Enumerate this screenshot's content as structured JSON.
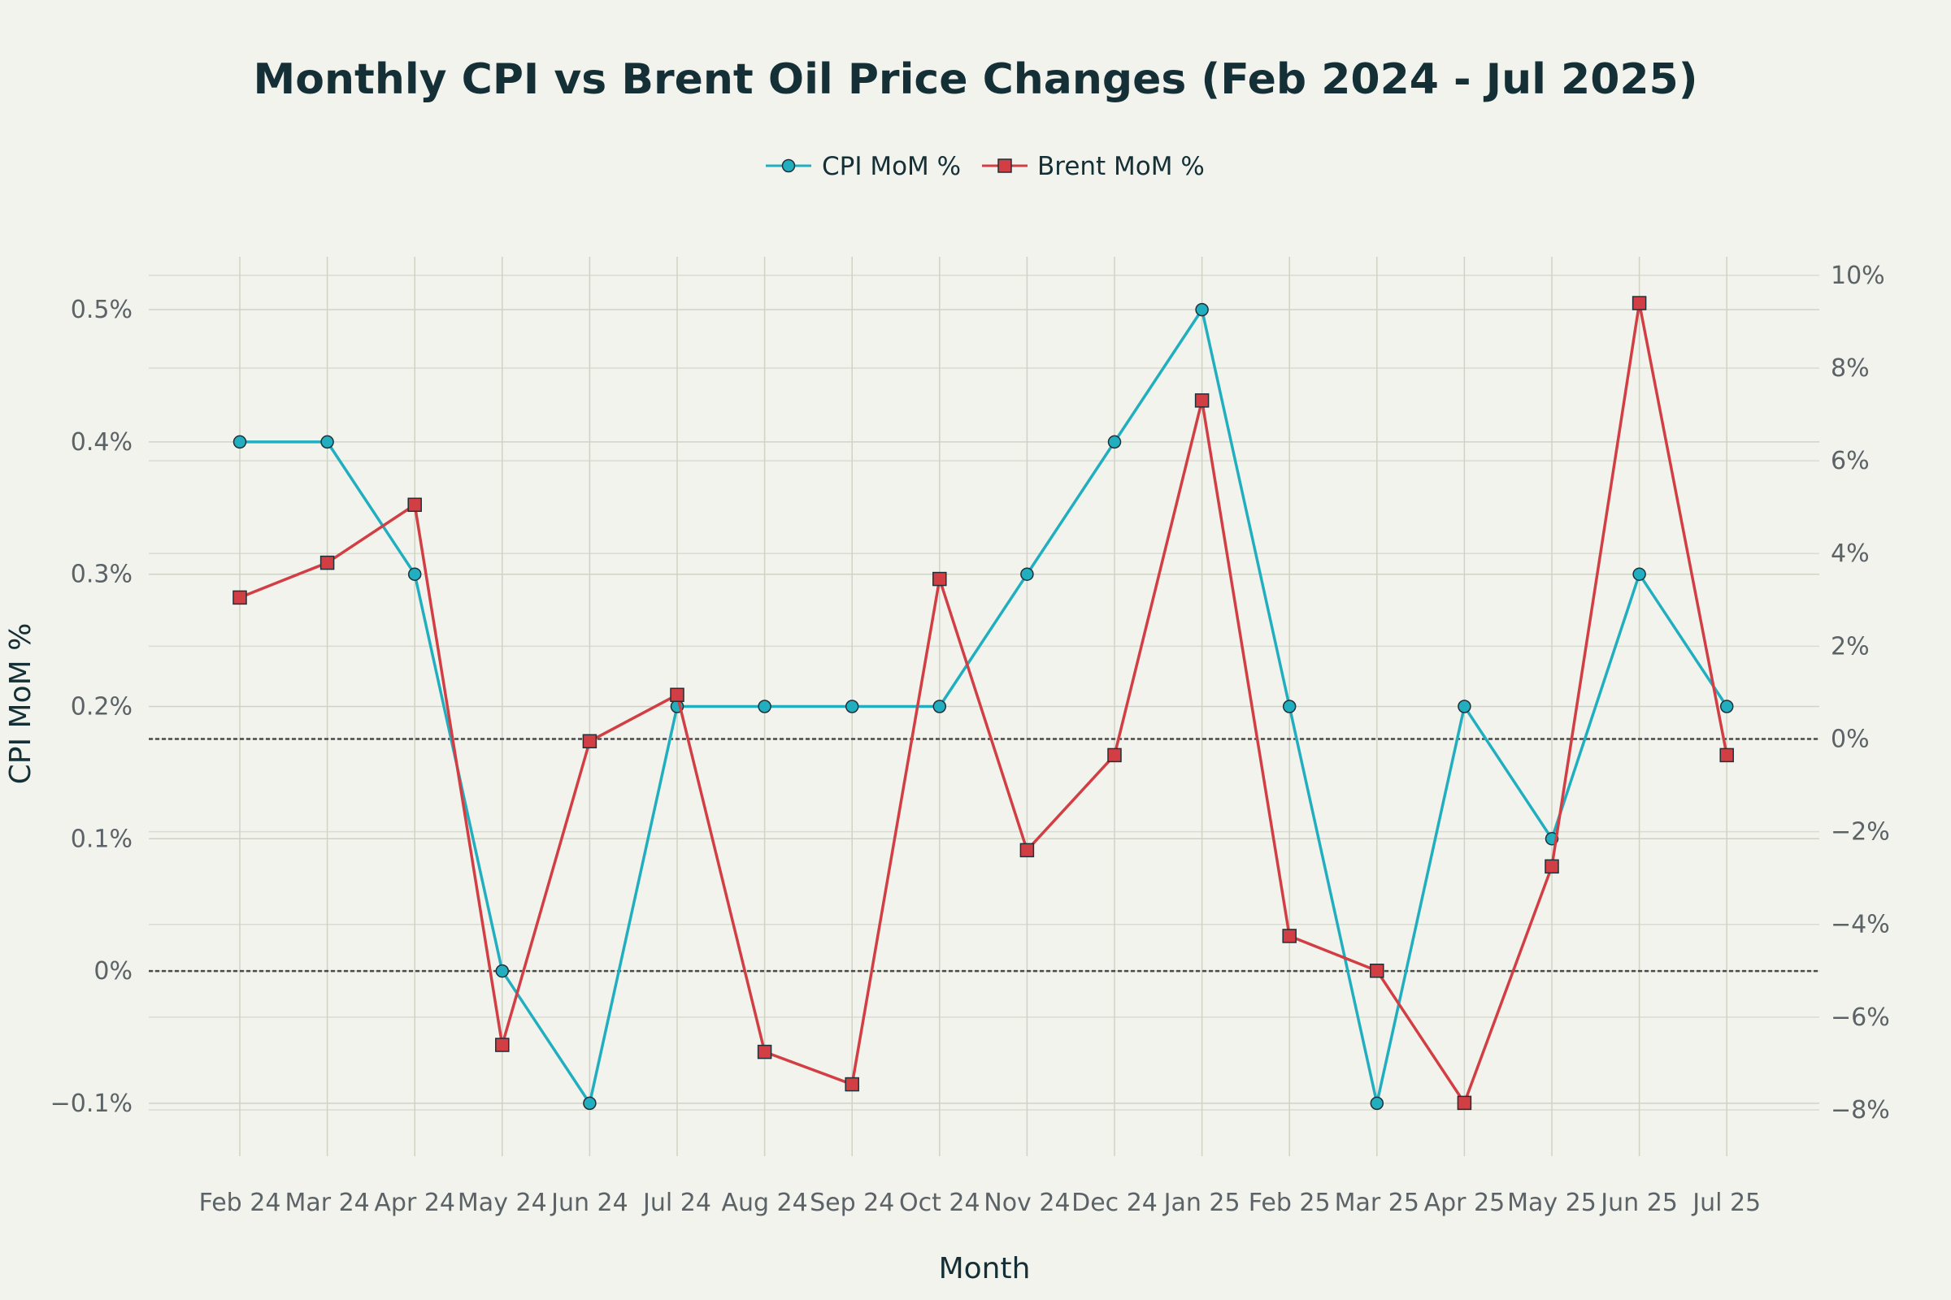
{
  "chart_data": {
    "type": "line",
    "title": "Monthly CPI vs Brent Oil Price Changes (Feb 2024 - Jul 2025)",
    "xlabel": "Month",
    "ylabel": "CPI MoM %",
    "y2label": "",
    "categories": [
      "Feb 24",
      "Mar 24",
      "Apr 24",
      "May 24",
      "Jun 24",
      "Jul 24",
      "Aug 24",
      "Sep 24",
      "Oct 24",
      "Nov 24",
      "Dec 24",
      "Jan 25",
      "Feb 25",
      "Mar 25",
      "Apr 25",
      "May 25",
      "Jun 25",
      "Jul 25"
    ],
    "ylim": [
      -0.14,
      0.54
    ],
    "y2lim": [
      -9.0,
      10.4
    ],
    "yticks": [
      -0.1,
      0,
      0.1,
      0.2,
      0.3,
      0.4,
      0.5
    ],
    "ytick_labels": [
      "−0.1%",
      "0%",
      "0.1%",
      "0.2%",
      "0.3%",
      "0.4%",
      "0.5%"
    ],
    "y2ticks": [
      -8,
      -6,
      -4,
      -2,
      0,
      2,
      4,
      6,
      8,
      10
    ],
    "y2tick_labels": [
      "−8%",
      "−6%",
      "−4%",
      "−2%",
      "0%",
      "2%",
      "4%",
      "6%",
      "8%",
      "10%"
    ],
    "grid": true,
    "legend_position": "top-center",
    "series": [
      {
        "name": "CPI MoM %",
        "axis": "left",
        "marker": "circle",
        "color": "#21afc0",
        "values": [
          0.4,
          0.4,
          0.3,
          0.0,
          -0.1,
          0.2,
          0.2,
          0.2,
          0.2,
          0.3,
          0.4,
          0.5,
          0.2,
          -0.1,
          0.2,
          0.1,
          0.3,
          0.2
        ]
      },
      {
        "name": "Brent MoM %",
        "axis": "right",
        "marker": "square",
        "color": "#d13f44",
        "values": [
          3.05,
          3.8,
          5.05,
          -6.6,
          -0.05,
          0.95,
          -6.75,
          -7.45,
          3.45,
          -2.4,
          -0.35,
          7.3,
          -4.25,
          -5.0,
          -7.85,
          -2.75,
          9.4,
          -0.35
        ]
      }
    ],
    "reference_lines": [
      {
        "axis": "left",
        "value": 0
      },
      {
        "axis": "right",
        "value": 0
      }
    ]
  }
}
